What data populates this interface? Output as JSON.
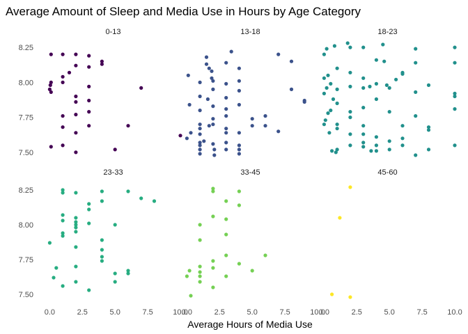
{
  "chart_data": {
    "type": "scatter",
    "title": "Average Amount of Sleep and Media Use in Hours by Age Category",
    "xlabel": "Average Hours of Media Use",
    "ylabel": "",
    "xlim": [
      -0.5,
      10
    ],
    "ylim": [
      7.45,
      8.3
    ],
    "x_ticks": [
      "0.0",
      "2.5",
      "5.0",
      "7.5",
      "10.0"
    ],
    "y_ticks": [
      "7.50",
      "7.75",
      "8.00",
      "8.25"
    ],
    "grid": false,
    "layout": "facet 3 columns x 2 rows",
    "facets": [
      {
        "label": "0-13",
        "color": "#440154",
        "points": [
          [
            0.1,
            8.2
          ],
          [
            0.1,
            8.0
          ],
          [
            0.05,
            7.98
          ],
          [
            0.1,
            7.93
          ],
          [
            0.0,
            7.95
          ],
          [
            0.1,
            7.54
          ],
          [
            1.0,
            8.2
          ],
          [
            1.0,
            8.04
          ],
          [
            1.0,
            8.0
          ],
          [
            1.0,
            7.76
          ],
          [
            1.0,
            7.68
          ],
          [
            1.0,
            7.55
          ],
          [
            1.5,
            8.07
          ],
          [
            2.0,
            8.2
          ],
          [
            2.0,
            8.12
          ],
          [
            2.0,
            7.9
          ],
          [
            2.0,
            7.86
          ],
          [
            2.0,
            7.77
          ],
          [
            2.0,
            7.64
          ],
          [
            2.0,
            7.5
          ],
          [
            3.0,
            8.19
          ],
          [
            3.0,
            8.11
          ],
          [
            3.0,
            7.97
          ],
          [
            3.0,
            7.87
          ],
          [
            3.0,
            7.79
          ],
          [
            3.0,
            7.69
          ],
          [
            4.0,
            8.15
          ],
          [
            4.0,
            8.13
          ],
          [
            5.0,
            7.52
          ],
          [
            6.0,
            7.69
          ],
          [
            7.0,
            7.96
          ],
          [
            10.0,
            7.62
          ]
        ]
      },
      {
        "label": "13-18",
        "color": "#3b528b",
        "points": [
          [
            0.1,
            8.05
          ],
          [
            0.2,
            7.84
          ],
          [
            0.3,
            7.64
          ],
          [
            0.0,
            7.6
          ],
          [
            1.0,
            8.0
          ],
          [
            1.0,
            7.9
          ],
          [
            1.0,
            7.8
          ],
          [
            1.0,
            7.7
          ],
          [
            1.0,
            7.67
          ],
          [
            1.0,
            7.63
          ],
          [
            1.0,
            7.57
          ],
          [
            1.0,
            7.55
          ],
          [
            1.0,
            7.52
          ],
          [
            1.0,
            7.49
          ],
          [
            1.5,
            8.18
          ],
          [
            1.5,
            8.13
          ],
          [
            1.7,
            8.1
          ],
          [
            1.9,
            8.08
          ],
          [
            1.9,
            8.03
          ],
          [
            1.6,
            7.88
          ],
          [
            1.7,
            7.69
          ],
          [
            1.3,
            7.58
          ],
          [
            2.0,
            8.01
          ],
          [
            2.0,
            7.95
          ],
          [
            2.0,
            7.83
          ],
          [
            2.0,
            7.74
          ],
          [
            2.0,
            7.7
          ],
          [
            2.0,
            7.56
          ],
          [
            2.1,
            7.52
          ],
          [
            2.1,
            7.48
          ],
          [
            3.0,
            8.14
          ],
          [
            3.0,
            7.99
          ],
          [
            3.0,
            7.89
          ],
          [
            3.0,
            7.81
          ],
          [
            3.0,
            7.76
          ],
          [
            3.0,
            7.67
          ],
          [
            3.0,
            7.64
          ],
          [
            3.0,
            7.57
          ],
          [
            3.0,
            7.52
          ],
          [
            3.4,
            8.22
          ],
          [
            4.0,
            8.1
          ],
          [
            4.0,
            8.01
          ],
          [
            4.0,
            7.94
          ],
          [
            4.0,
            7.84
          ],
          [
            4.0,
            7.64
          ],
          [
            4.0,
            7.55
          ],
          [
            4.0,
            7.52
          ],
          [
            4.0,
            7.49
          ],
          [
            5.0,
            7.74
          ],
          [
            5.0,
            7.69
          ],
          [
            6.0,
            7.76
          ],
          [
            6.0,
            7.69
          ],
          [
            7.0,
            8.2
          ],
          [
            7.0,
            7.65
          ],
          [
            8.0,
            8.15
          ],
          [
            8.0,
            7.95
          ],
          [
            9.0,
            7.87
          ],
          [
            9.0,
            7.86
          ]
        ]
      },
      {
        "label": "18-23",
        "color": "#21908c",
        "points": [
          [
            0.2,
            8.24
          ],
          [
            0.0,
            8.2
          ],
          [
            0.3,
            8.05
          ],
          [
            0.0,
            8.03
          ],
          [
            0.2,
            7.96
          ],
          [
            0.0,
            7.92
          ],
          [
            0.3,
            7.78
          ],
          [
            0.1,
            7.73
          ],
          [
            0.0,
            7.7
          ],
          [
            0.4,
            7.64
          ],
          [
            0.5,
            7.99
          ],
          [
            0.7,
            7.88
          ],
          [
            0.5,
            7.8
          ],
          [
            0.6,
            7.51
          ],
          [
            0.9,
            7.5
          ],
          [
            0.8,
            8.26
          ],
          [
            1.0,
            8.1
          ],
          [
            1.0,
            7.95
          ],
          [
            1.0,
            7.85
          ],
          [
            1.0,
            7.7
          ],
          [
            1.0,
            7.67
          ],
          [
            1.0,
            7.52
          ],
          [
            1.8,
            8.28
          ],
          [
            2.0,
            8.25
          ],
          [
            2.0,
            8.07
          ],
          [
            2.0,
            7.97
          ],
          [
            2.0,
            7.79
          ],
          [
            2.0,
            7.75
          ],
          [
            2.0,
            7.63
          ],
          [
            2.0,
            7.55
          ],
          [
            3.0,
            8.25
          ],
          [
            3.0,
            8.03
          ],
          [
            3.0,
            7.96
          ],
          [
            3.0,
            7.82
          ],
          [
            3.0,
            7.69
          ],
          [
            3.0,
            7.63
          ],
          [
            3.0,
            7.57
          ],
          [
            3.0,
            7.54
          ],
          [
            3.5,
            7.97
          ],
          [
            3.6,
            7.51
          ],
          [
            4.0,
            8.16
          ],
          [
            4.0,
            7.99
          ],
          [
            4.0,
            7.88
          ],
          [
            4.0,
            7.61
          ],
          [
            4.0,
            7.55
          ],
          [
            4.0,
            7.51
          ],
          [
            4.5,
            8.27
          ],
          [
            4.6,
            8.15
          ],
          [
            4.8,
            7.98
          ],
          [
            5.0,
            7.96
          ],
          [
            5.0,
            7.79
          ],
          [
            5.0,
            7.58
          ],
          [
            5.0,
            7.52
          ],
          [
            5.5,
            8.02
          ],
          [
            6.0,
            8.07
          ],
          [
            6.0,
            8.06
          ],
          [
            6.0,
            7.69
          ],
          [
            6.0,
            7.6
          ],
          [
            6.0,
            7.55
          ],
          [
            7.0,
            8.24
          ],
          [
            7.0,
            8.14
          ],
          [
            7.0,
            7.93
          ],
          [
            7.0,
            7.76
          ],
          [
            7.0,
            7.48
          ],
          [
            8.0,
            7.98
          ],
          [
            8.0,
            7.68
          ],
          [
            8.0,
            7.66
          ],
          [
            8.0,
            7.52
          ],
          [
            10.0,
            8.25
          ],
          [
            10.0,
            8.14
          ],
          [
            10.0,
            7.92
          ],
          [
            10.0,
            7.9
          ],
          [
            10.0,
            7.81
          ],
          [
            10.0,
            7.55
          ]
        ]
      },
      {
        "label": "23-33",
        "color": "#27ad81",
        "points": [
          [
            0.0,
            7.87
          ],
          [
            0.3,
            7.62
          ],
          [
            0.5,
            7.69
          ],
          [
            1.0,
            8.25
          ],
          [
            1.0,
            8.23
          ],
          [
            1.0,
            8.07
          ],
          [
            1.0,
            8.03
          ],
          [
            1.0,
            7.94
          ],
          [
            1.0,
            7.92
          ],
          [
            1.0,
            7.56
          ],
          [
            2.0,
            8.23
          ],
          [
            2.0,
            8.05
          ],
          [
            2.0,
            8.02
          ],
          [
            2.0,
            8.0
          ],
          [
            2.0,
            7.98
          ],
          [
            2.0,
            7.95
          ],
          [
            2.0,
            7.84
          ],
          [
            2.0,
            7.7
          ],
          [
            2.0,
            7.59
          ],
          [
            3.0,
            8.15
          ],
          [
            3.0,
            8.11
          ],
          [
            3.0,
            8.01
          ],
          [
            3.0,
            7.53
          ],
          [
            4.0,
            8.24
          ],
          [
            4.0,
            8.17
          ],
          [
            4.0,
            7.89
          ],
          [
            4.0,
            7.82
          ],
          [
            4.0,
            7.77
          ],
          [
            4.0,
            7.74
          ],
          [
            5.0,
            8.0
          ],
          [
            5.0,
            7.65
          ],
          [
            5.0,
            7.59
          ],
          [
            6.0,
            8.24
          ],
          [
            6.0,
            7.67
          ],
          [
            6.0,
            7.65
          ],
          [
            7.0,
            8.19
          ],
          [
            8.0,
            8.17
          ]
        ]
      },
      {
        "label": "33-45",
        "color": "#75d054",
        "points": [
          [
            0.0,
            7.63
          ],
          [
            0.2,
            7.67
          ],
          [
            0.3,
            7.49
          ],
          [
            1.0,
            8.0
          ],
          [
            1.0,
            7.89
          ],
          [
            1.0,
            7.7
          ],
          [
            1.0,
            7.66
          ],
          [
            1.0,
            7.63
          ],
          [
            1.0,
            7.59
          ],
          [
            2.0,
            8.26
          ],
          [
            2.0,
            8.24
          ],
          [
            2.0,
            8.06
          ],
          [
            2.0,
            7.74
          ],
          [
            2.0,
            7.69
          ],
          [
            2.0,
            7.55
          ],
          [
            3.0,
            8.17
          ],
          [
            3.0,
            8.04
          ],
          [
            3.0,
            7.93
          ],
          [
            3.0,
            7.78
          ],
          [
            3.0,
            7.63
          ],
          [
            4.0,
            8.24
          ],
          [
            4.0,
            8.14
          ],
          [
            4.0,
            7.72
          ],
          [
            5.0,
            7.67
          ],
          [
            6.0,
            7.78
          ]
        ]
      },
      {
        "label": "45-60",
        "color": "#fde725",
        "points": [
          [
            2.0,
            8.27
          ],
          [
            1.2,
            8.05
          ],
          [
            0.6,
            7.5
          ],
          [
            2.0,
            7.48
          ]
        ]
      }
    ]
  }
}
